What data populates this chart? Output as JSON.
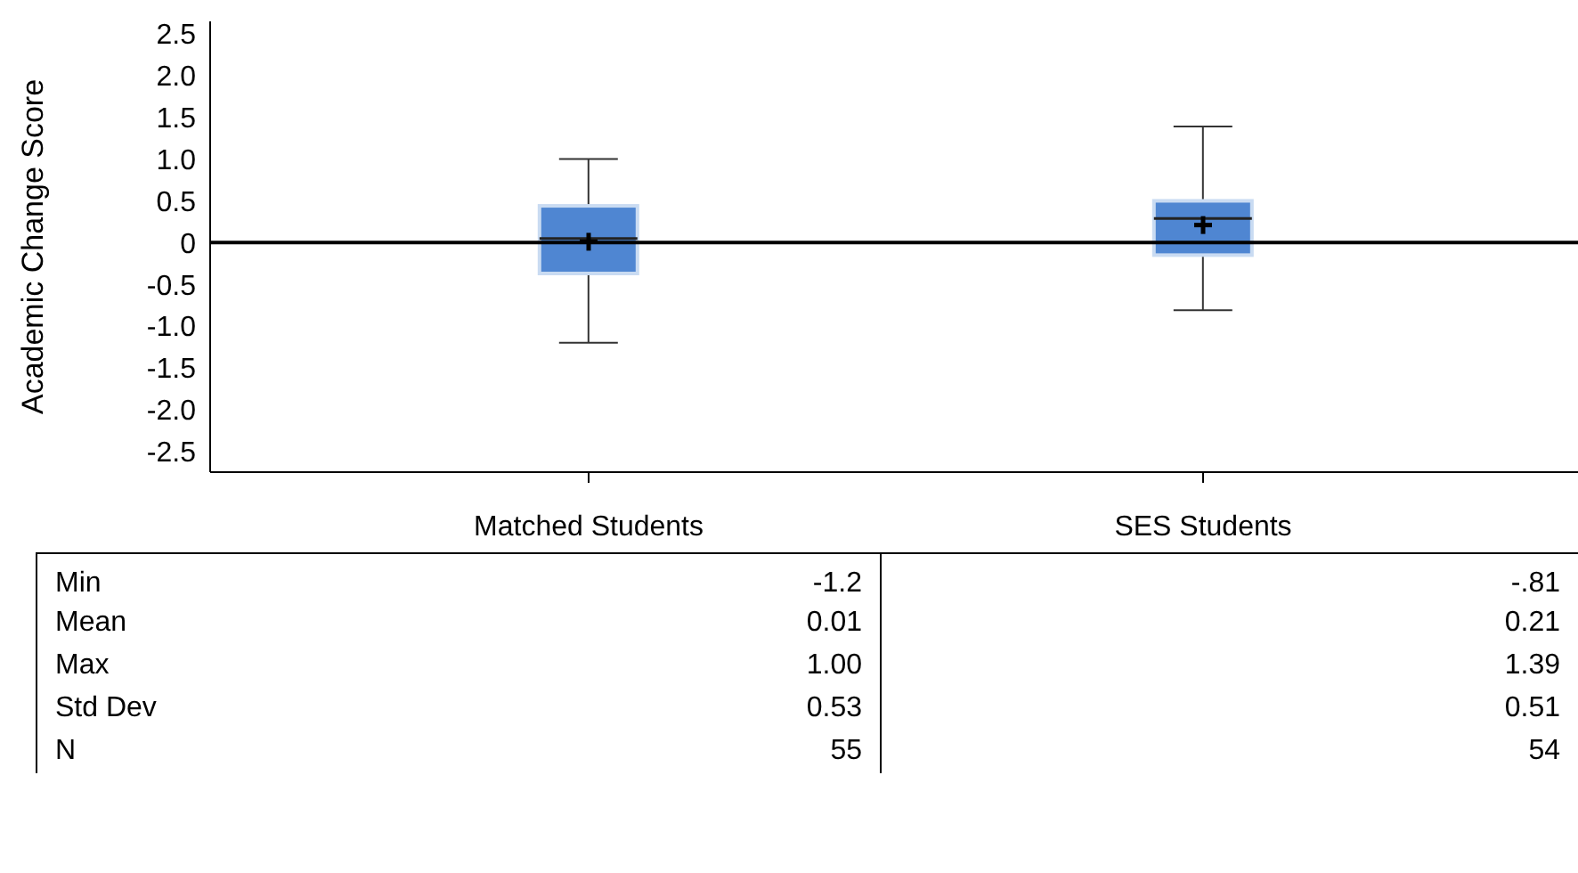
{
  "chart_data": [
    {
      "type": "box",
      "ylabel": "Academic Change Score",
      "categories": [
        "Matched Students",
        "SES Students"
      ],
      "color": "#4f86d2",
      "boxes": [
        {
          "low": -1.2,
          "q1": -0.37,
          "median": 0.05,
          "q3": 0.44,
          "high": 1.0,
          "mean": 0.01
        },
        {
          "low": -0.81,
          "q1": -0.15,
          "median": 0.29,
          "q3": 0.5,
          "high": 1.39,
          "mean": 0.21
        }
      ],
      "ylim": [
        -2.75,
        2.65
      ],
      "yticks": [
        {
          "value": -2.5,
          "label": "-2.5"
        },
        {
          "value": -2,
          "label": "-2.0"
        },
        {
          "value": -1.5,
          "label": "-1.5"
        },
        {
          "value": -1,
          "label": "-1.0"
        },
        {
          "value": -0.5,
          "label": "-0.5"
        },
        0,
        {
          "value": 0.5,
          "label": "0.5"
        },
        {
          "value": 1,
          "label": "1.0"
        },
        {
          "value": 1.5,
          "label": "1.5"
        },
        {
          "value": 2,
          "label": "2.0"
        },
        {
          "value": 2.5,
          "label": "2.5"
        }
      ],
      "ref_lines": [
        {
          "axis": "y",
          "value": 0,
          "color": "#000000"
        }
      ],
      "marker": "cross",
      "grid": false
    },
    {
      "type": "other",
      "y_categories": [
        "Min",
        "Mean",
        "Max",
        "Std Dev",
        "N"
      ],
      "cell_labels": [
        [
          "-1.2",
          "-.81"
        ],
        [
          "0.01",
          "0.21"
        ],
        [
          "1.00",
          "1.39"
        ],
        [
          "0.53",
          "0.51"
        ],
        [
          "55",
          "54"
        ]
      ]
    }
  ]
}
